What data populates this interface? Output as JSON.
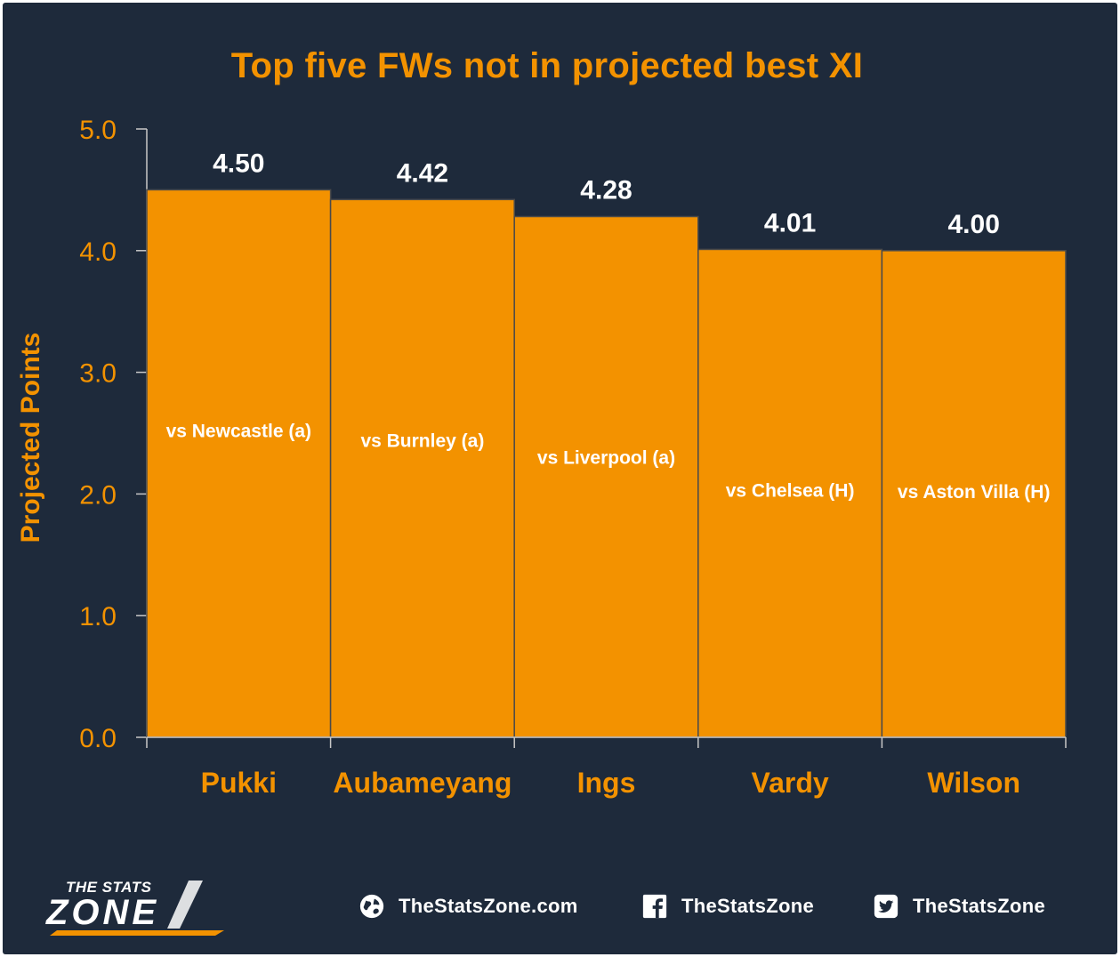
{
  "chart_data": {
    "type": "bar",
    "title": "Top five FWs not in projected best XI",
    "ylabel": "Projected Points",
    "xlabel": "",
    "categories": [
      "Pukki",
      "Aubameyang",
      "Ings",
      "Vardy",
      "Wilson"
    ],
    "values": [
      4.5,
      4.42,
      4.28,
      4.01,
      4.0
    ],
    "value_labels": [
      "4.50",
      "4.42",
      "4.28",
      "4.01",
      "4.00"
    ],
    "bar_annotations": [
      "vs Newcastle (a)",
      "vs Burnley (a)",
      "vs Liverpool (a)",
      "vs Chelsea (H)",
      "vs Aston Villa (H)"
    ],
    "ylim": [
      0,
      5
    ],
    "yticks": [
      0,
      1,
      2,
      3,
      4,
      5
    ],
    "ytick_labels": [
      "0.0",
      "1.0",
      "2.0",
      "3.0",
      "4.0",
      "5.0"
    ],
    "grid": false,
    "legend": "none"
  },
  "colors": {
    "background": "#1e2a3b",
    "bar": "#f39200",
    "bar_edge": "#4a4a4a",
    "accent": "#f39200",
    "axis": "#c8c8c8",
    "value_text": "#ffffff"
  },
  "footer": {
    "logo_top": "THE STATS",
    "logo_main": "ZONE",
    "website": "TheStatsZone.com",
    "facebook": "TheStatsZone",
    "twitter": "TheStatsZone",
    "icons": [
      "globe-icon",
      "facebook-icon",
      "twitter-icon"
    ]
  }
}
